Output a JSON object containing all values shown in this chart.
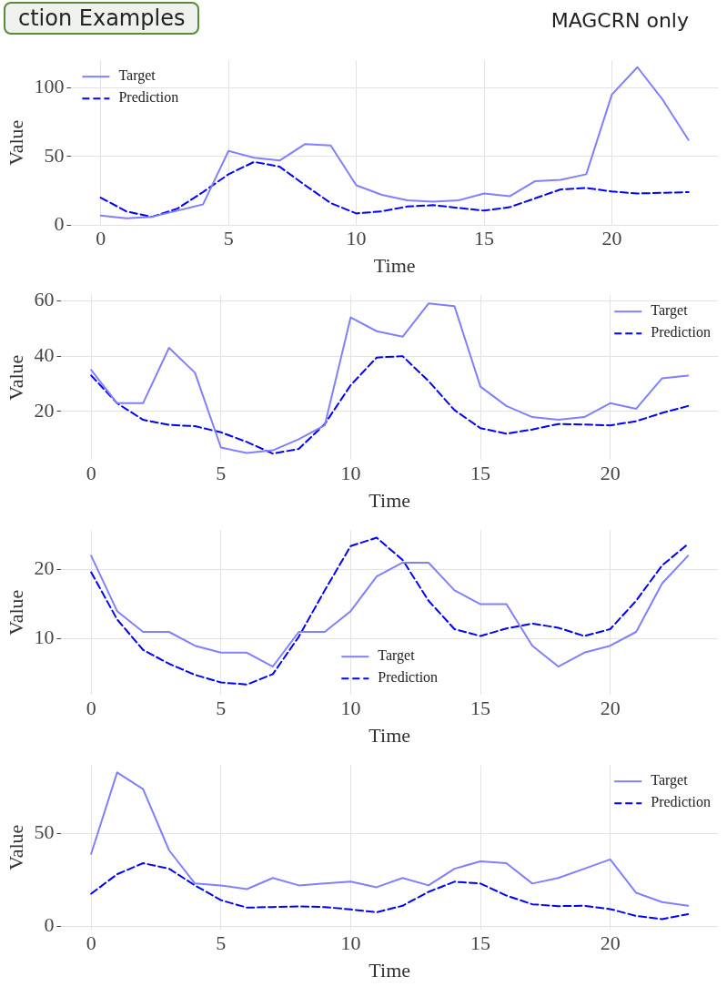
{
  "chart_data": [
    {
      "type": "line",
      "title": "ction Examples",
      "subtitle": "MAGCRN only",
      "xlabel": "Time",
      "ylabel": "Value",
      "x": [
        0,
        1,
        2,
        3,
        4,
        5,
        6,
        7,
        8,
        9,
        10,
        11,
        12,
        13,
        14,
        15,
        16,
        17,
        18,
        19,
        20,
        21,
        22,
        23
      ],
      "xlim": [
        -1.15,
        24.15
      ],
      "xticks": [
        0,
        5,
        10,
        15,
        20
      ],
      "ylim": [
        0,
        120
      ],
      "yticks": [
        0,
        50,
        100
      ],
      "grid": true,
      "legend": "top left",
      "marker": "none",
      "series": [
        {
          "name": "Target",
          "color": "#8080ff",
          "line_style": "solid",
          "values": [
            7,
            5,
            6,
            10.5,
            15,
            54,
            49,
            47,
            59,
            58,
            29,
            22,
            18,
            17,
            18,
            23,
            21,
            32,
            33,
            37,
            95,
            115,
            91,
            62
          ]
        },
        {
          "name": "Prediction",
          "color": "#0000ff",
          "line_style": "dashed",
          "values": [
            20,
            10,
            6,
            12,
            24,
            37,
            46,
            42.5,
            29,
            16,
            8.5,
            10,
            13.5,
            14.5,
            12.5,
            10.5,
            13,
            19.5,
            26,
            27,
            24.5,
            23,
            23.5,
            24
          ]
        }
      ]
    },
    {
      "type": "line",
      "xlabel": "Time",
      "ylabel": "Value",
      "x": [
        0,
        1,
        2,
        3,
        4,
        5,
        6,
        7,
        8,
        9,
        10,
        11,
        12,
        13,
        14,
        15,
        16,
        17,
        18,
        19,
        20,
        21,
        22,
        23
      ],
      "xlim": [
        -1.15,
        24.15
      ],
      "xticks": [
        0,
        5,
        10,
        15,
        20
      ],
      "ylim": [
        2.5,
        62
      ],
      "yticks": [
        20,
        40,
        60
      ],
      "grid": true,
      "legend": "top right",
      "marker": "none",
      "series": [
        {
          "name": "Target",
          "color": "#8080ff",
          "line_style": "solid",
          "values": [
            35,
            23,
            23,
            43,
            34,
            7,
            5,
            6,
            10,
            15,
            54,
            49,
            47,
            59,
            58,
            29,
            22,
            18,
            17,
            18,
            23,
            21,
            32,
            33
          ]
        },
        {
          "name": "Prediction",
          "color": "#0000ff",
          "line_style": "dashed",
          "values": [
            33,
            23,
            17,
            15.2,
            14.7,
            12.5,
            9,
            4.8,
            6.5,
            15.5,
            29.5,
            39.5,
            40,
            31,
            20.5,
            14,
            12,
            13.5,
            15.5,
            15.3,
            15,
            16.5,
            19.5,
            22
          ]
        }
      ]
    },
    {
      "type": "line",
      "xlabel": "Time",
      "ylabel": "Value",
      "x": [
        0,
        1,
        2,
        3,
        4,
        5,
        6,
        7,
        8,
        9,
        10,
        11,
        12,
        13,
        14,
        15,
        16,
        17,
        18,
        19,
        20,
        21,
        22,
        23
      ],
      "xlim": [
        -1.15,
        24.15
      ],
      "xticks": [
        0,
        5,
        10,
        15,
        20
      ],
      "ylim": [
        1.9,
        25.7
      ],
      "yticks": [
        10,
        20
      ],
      "grid": true,
      "legend": "bottom",
      "marker": "none",
      "series": [
        {
          "name": "Target",
          "color": "#8080ff",
          "line_style": "solid",
          "values": [
            22,
            14,
            11,
            11,
            9,
            8,
            8,
            6,
            11,
            11,
            14,
            19,
            21,
            21,
            17,
            15,
            15,
            9,
            6,
            8,
            9,
            11,
            18,
            22
          ]
        },
        {
          "name": "Prediction",
          "color": "#0000ff",
          "line_style": "dashed",
          "values": [
            19.6,
            12.8,
            8.4,
            6.4,
            4.8,
            3.7,
            3.4,
            4.9,
            10.3,
            17,
            23.4,
            24.6,
            21.4,
            15.5,
            11.4,
            10.4,
            11.5,
            12.2,
            11.6,
            10.4,
            11.4,
            15.5,
            20.6,
            23.7
          ]
        }
      ]
    },
    {
      "type": "line",
      "xlabel": "Time",
      "ylabel": "Value",
      "x": [
        0,
        1,
        2,
        3,
        4,
        5,
        6,
        7,
        8,
        9,
        10,
        11,
        12,
        13,
        14,
        15,
        16,
        17,
        18,
        19,
        20,
        21,
        22,
        23
      ],
      "xlim": [
        -1.15,
        24.15
      ],
      "xticks": [
        0,
        5,
        10,
        15,
        20
      ],
      "ylim": [
        -2,
        87
      ],
      "yticks": [
        0,
        50
      ],
      "grid": true,
      "legend": "top right",
      "marker": "none",
      "series": [
        {
          "name": "Target",
          "color": "#8080ff",
          "line_style": "solid",
          "values": [
            39,
            83,
            74,
            41,
            23,
            22,
            20,
            26,
            22,
            23,
            24,
            21,
            26,
            22,
            31,
            35,
            34,
            23,
            26,
            31,
            36,
            18,
            13,
            11
          ]
        },
        {
          "name": "Prediction",
          "color": "#0000ff",
          "line_style": "dashed",
          "values": [
            17.5,
            28,
            34,
            31,
            22,
            14,
            10,
            10.3,
            10.7,
            10.3,
            9,
            7.5,
            11,
            18.5,
            24,
            23,
            16.5,
            11.8,
            10.8,
            11,
            9.2,
            5.5,
            3.8,
            6.5
          ]
        }
      ]
    }
  ]
}
